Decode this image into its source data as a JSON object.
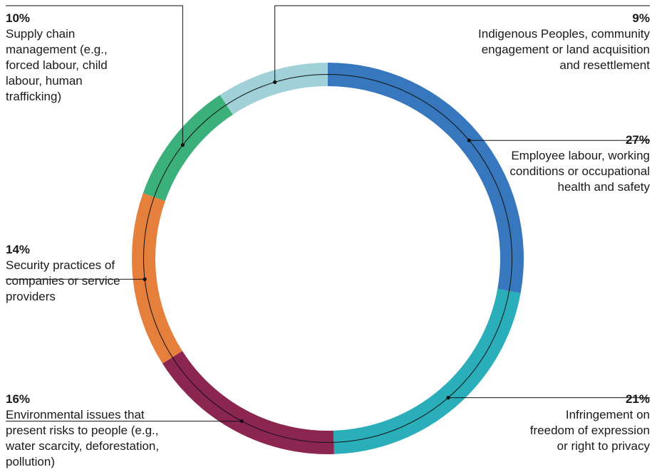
{
  "chart_data": {
    "type": "donut",
    "title": "",
    "colors": {
      "employee": "#3777bd",
      "freedom": "#2aaeb9",
      "environment": "#8a2650",
      "security": "#e47f3c",
      "supply": "#3bb07a",
      "indigenous": "#a0d1d9"
    },
    "slices": [
      {
        "key": "employee",
        "value": 27,
        "pct_label": "27%",
        "label": "Employee labour, working conditions or occupational health and safety"
      },
      {
        "key": "freedom",
        "value": 21,
        "pct_label": "21%",
        "label": "Infringement on freedom of expression or right to privacy"
      },
      {
        "key": "environment",
        "value": 16,
        "pct_label": "16%",
        "label": "Environmental issues that present risks to people (e.g., water scarcity, deforestation, pollution)"
      },
      {
        "key": "security",
        "value": 14,
        "pct_label": "14%",
        "label": "Security practices of companies or service providers"
      },
      {
        "key": "supply",
        "value": 10,
        "pct_label": "10%",
        "label": "Supply chain management (e.g., forced labour, child labour, human trafficking)"
      },
      {
        "key": "indigenous",
        "value": 9,
        "pct_label": "9%",
        "label": "Indigenous Peoples, community engagement or land acquisition and resettlement"
      }
    ]
  }
}
